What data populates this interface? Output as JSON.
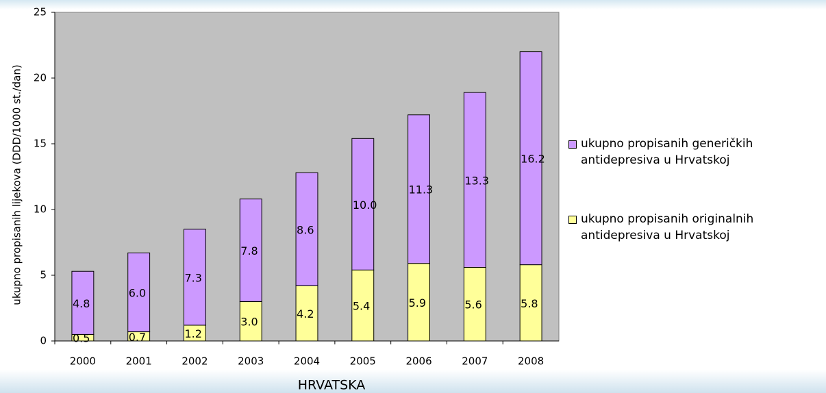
{
  "chart_data": {
    "type": "stacked_bar",
    "ylabel": "ukupno propisanih lijekova (DDD/1000 st./dan)",
    "xlabel": "HRVATSKA",
    "categories": [
      "2000",
      "2001",
      "2002",
      "2003",
      "2004",
      "2005",
      "2006",
      "2007",
      "2008"
    ],
    "series": [
      {
        "name": "ukupno propisanih originalnih antidepresiva u Hrvatskoj",
        "color": "#ffff99",
        "values": [
          0.5,
          0.7,
          1.2,
          3.0,
          4.2,
          5.4,
          5.9,
          5.6,
          5.8
        ],
        "value_labels": [
          "0.5",
          "0.7",
          "1.2",
          "3.0",
          "4.2",
          "5.4",
          "5.9",
          "5.6",
          "5.8"
        ]
      },
      {
        "name": "ukupno propisanih generičkih antidepresiva u Hrvatskoj",
        "color": "#cc99ff",
        "values": [
          4.8,
          6.0,
          7.3,
          7.8,
          8.6,
          10.0,
          11.3,
          13.3,
          16.2
        ],
        "value_labels": [
          "4.8",
          "6.0",
          "7.3",
          "7.8",
          "8.6",
          "10.0",
          "11.3",
          "13.3",
          "16.2"
        ]
      }
    ],
    "ylim": [
      0,
      25
    ],
    "yticks": [
      0,
      5,
      10,
      15,
      20,
      25
    ],
    "grid": false,
    "legend": "right",
    "plot_background": "#c0c0c0"
  }
}
